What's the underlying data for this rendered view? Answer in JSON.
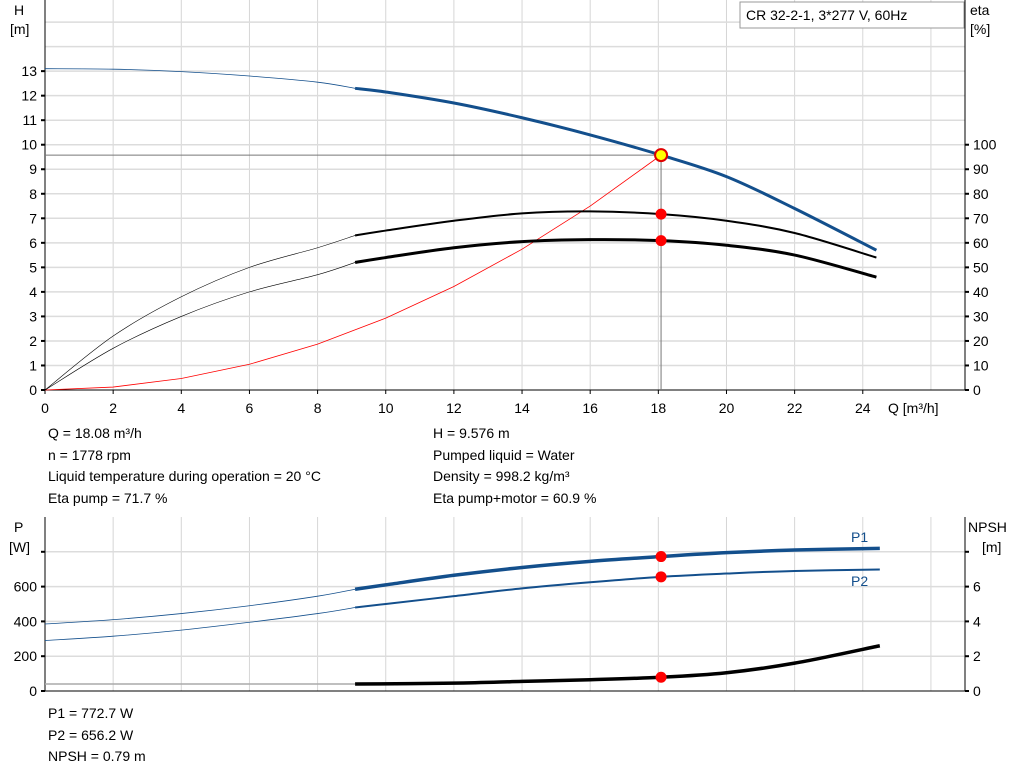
{
  "chart_data": [
    {
      "type": "line",
      "legend_box": "CR 32-2-1, 3*277 V, 60Hz",
      "xlabel": "Q [m³/h]",
      "ylabel_left": "H",
      "ylabel_left_unit": "[m]",
      "ylabel_right": "eta",
      "ylabel_right_unit": "[%]",
      "xlim": [
        0,
        27
      ],
      "ylim_left": [
        0,
        15.9
      ],
      "ylim_right": [
        0,
        159
      ],
      "x_ticks": [
        0,
        2,
        4,
        6,
        8,
        10,
        12,
        14,
        16,
        18,
        20,
        22,
        24
      ],
      "y_left_ticks": [
        0,
        1,
        2,
        3,
        4,
        5,
        6,
        7,
        8,
        9,
        10,
        11,
        12,
        13
      ],
      "y_right_ticks": [
        0,
        10,
        20,
        30,
        40,
        50,
        60,
        70,
        80,
        90,
        100
      ],
      "grid": true,
      "colors": {
        "head": "#134f8c",
        "eta": "#000000",
        "system": "#ff0000",
        "duty": "#ffff00",
        "point": "#ff0000"
      },
      "series": [
        {
          "id": "head",
          "axis": "left",
          "x": [
            0,
            2,
            4,
            6,
            8,
            9.1,
            10,
            12,
            14,
            16,
            18.08,
            20,
            22,
            24.4
          ],
          "y": [
            13.1,
            13.08,
            12.98,
            12.8,
            12.55,
            12.3,
            12.15,
            11.7,
            11.1,
            10.4,
            9.576,
            8.7,
            7.4,
            5.7
          ]
        },
        {
          "id": "eta_pump",
          "axis": "right",
          "x": [
            0,
            2,
            4,
            6,
            8,
            9.1,
            10,
            12,
            14,
            16,
            18.08,
            20,
            22,
            24.4
          ],
          "y": [
            0,
            22,
            38,
            50,
            58,
            63,
            65,
            69,
            72,
            72.8,
            71.7,
            69,
            64,
            54
          ]
        },
        {
          "id": "eta_pump_motor",
          "axis": "right",
          "x": [
            0,
            2,
            4,
            6,
            8,
            9.1,
            10,
            12,
            14,
            16,
            18.08,
            20,
            22,
            24.4
          ],
          "y": [
            0,
            17,
            30,
            40,
            47,
            52,
            54,
            58,
            60.5,
            61.3,
            60.9,
            59,
            55,
            46
          ]
        },
        {
          "id": "system_curve",
          "axis": "left",
          "x": [
            0,
            2,
            4,
            6,
            8,
            10,
            12,
            14,
            16,
            18.08
          ],
          "y": [
            0,
            0.12,
            0.47,
            1.05,
            1.87,
            2.93,
            4.22,
            5.74,
            7.5,
            9.576
          ]
        }
      ],
      "duty_point": {
        "Q": 18.08,
        "H": 9.576,
        "eta_pump": 71.7,
        "eta_pump_motor": 60.9
      }
    },
    {
      "type": "line",
      "ylabel_left": "P",
      "ylabel_left_unit": "[W]",
      "ylabel_right": "NPSH",
      "ylabel_right_unit": "[m]",
      "xlim": [
        0,
        27
      ],
      "ylim_left": [
        0,
        1000
      ],
      "ylim_right": [
        0,
        10
      ],
      "y_left_ticks": [
        0,
        200,
        400,
        600,
        800
      ],
      "y_left_tick_labels": [
        "0",
        "200",
        "400",
        "600",
        ""
      ],
      "y_right_ticks": [
        0,
        2,
        4,
        6,
        8
      ],
      "y_right_tick_labels": [
        "0",
        "2",
        "4",
        "6",
        ""
      ],
      "grid": true,
      "series": [
        {
          "id": "P1",
          "name": "P1",
          "axis": "left",
          "x": [
            0,
            2,
            4,
            6,
            8,
            9.1,
            10,
            12,
            14,
            16,
            18.08,
            20,
            22,
            24.5
          ],
          "y": [
            385,
            410,
            445,
            490,
            545,
            585,
            610,
            665,
            710,
            745,
            772.7,
            795,
            810,
            820
          ]
        },
        {
          "id": "P2",
          "name": "P2",
          "axis": "left",
          "x": [
            0,
            2,
            4,
            6,
            8,
            9.1,
            10,
            12,
            14,
            16,
            18.08,
            20,
            22,
            24.5
          ],
          "y": [
            290,
            315,
            350,
            395,
            445,
            480,
            500,
            545,
            590,
            625,
            656.2,
            675,
            690,
            698
          ]
        },
        {
          "id": "NPSH",
          "axis": "right",
          "x": [
            0,
            9.1,
            12,
            14,
            16,
            18.08,
            20,
            22,
            24.5
          ],
          "y": [
            0.4,
            0.4,
            0.45,
            0.55,
            0.65,
            0.79,
            1.05,
            1.6,
            2.6
          ]
        }
      ],
      "duty_point": {
        "Q": 18.08,
        "P1": 772.7,
        "P2": 656.2,
        "NPSH": 0.79
      }
    }
  ],
  "info_top": {
    "left": [
      "Q = 18.08 m³/h",
      "n = 1778 rpm",
      "Liquid temperature during operation = 20 °C",
      "Eta pump = 71.7 %"
    ],
    "right": [
      "H = 9.576 m",
      "Pumped liquid = Water",
      "Density = 998.2 kg/m³",
      "Eta pump+motor = 60.9 %"
    ]
  },
  "info_bottom": [
    "P1 = 772.7 W",
    "P2 = 656.2 W",
    "NPSH = 0.79 m"
  ]
}
